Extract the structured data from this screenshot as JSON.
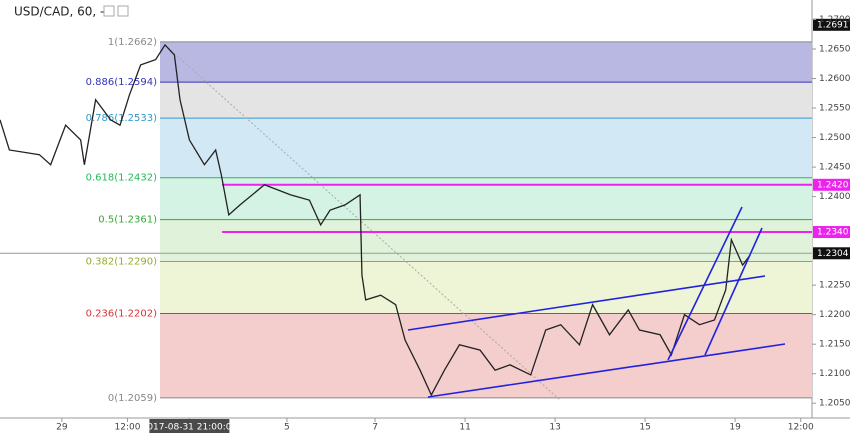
{
  "chart_data": {
    "type": "line",
    "title": "USD/CAD, 60, -",
    "ylim": [
      1.2025,
      1.2733
    ],
    "xlim": [
      0,
      433
    ],
    "yticks": [
      {
        "value": 1.205,
        "label": "1.2050"
      },
      {
        "value": 1.21,
        "label": "1.2100"
      },
      {
        "value": 1.215,
        "label": "1.2150"
      },
      {
        "value": 1.22,
        "label": "1.2200"
      },
      {
        "value": 1.225,
        "label": "1.2250"
      },
      {
        "value": 1.24,
        "label": "1.2400"
      },
      {
        "value": 1.245,
        "label": "1.2450"
      },
      {
        "value": 1.25,
        "label": "1.2500"
      },
      {
        "value": 1.255,
        "label": "1.2550"
      },
      {
        "value": 1.26,
        "label": "1.2600"
      },
      {
        "value": 1.265,
        "label": "1.2650"
      },
      {
        "value": 1.27,
        "label": "1.2700"
      }
    ],
    "xticks": [
      {
        "value": 33,
        "label": "29"
      },
      {
        "value": 68,
        "label": "12:00"
      },
      {
        "value": 101,
        "label": "2017-08-31 21:00:00"
      },
      {
        "value": 153,
        "label": "5"
      },
      {
        "value": 200,
        "label": "7"
      },
      {
        "value": 248,
        "label": "11"
      },
      {
        "value": 296,
        "label": "13"
      },
      {
        "value": 344,
        "label": "15"
      },
      {
        "value": 392,
        "label": "19"
      },
      {
        "value": 427,
        "label": "12:00"
      }
    ],
    "x": [
      0,
      5,
      21,
      27,
      35,
      43,
      45,
      51,
      59,
      64,
      69,
      75,
      83,
      88,
      93,
      96,
      101,
      109,
      115,
      118,
      122,
      128,
      141,
      155,
      165,
      171,
      176,
      184,
      192,
      193,
      195,
      203,
      211,
      216,
      224,
      230,
      237,
      245,
      256,
      264,
      272,
      283,
      291,
      299,
      309,
      316,
      325,
      335,
      341,
      352,
      358,
      365,
      373,
      381,
      387,
      390,
      396,
      400
    ],
    "series": [
      {
        "name": "USD/CAD",
        "color": "#222222",
        "values": [
          1.253,
          1.2479,
          1.2471,
          1.2454,
          1.2521,
          1.2496,
          1.2454,
          1.2564,
          1.253,
          1.2521,
          1.2572,
          1.2623,
          1.2632,
          1.2657,
          1.264,
          1.2564,
          1.2496,
          1.2454,
          1.2479,
          1.2437,
          1.2369,
          1.2386,
          1.242,
          1.2403,
          1.2394,
          1.2352,
          1.2377,
          1.2386,
          1.2403,
          1.2267,
          1.2225,
          1.2233,
          1.2217,
          1.2157,
          1.2106,
          1.2064,
          1.2106,
          1.2149,
          1.214,
          1.2106,
          1.2115,
          1.2098,
          1.2174,
          1.2183,
          1.2149,
          1.2217,
          1.2166,
          1.2208,
          1.2174,
          1.2166,
          1.2132,
          1.22,
          1.2183,
          1.2191,
          1.2242,
          1.2327,
          1.2284,
          1.2301
        ]
      }
    ],
    "fib_levels": [
      {
        "label": "1(1.2662)",
        "value": 1.2662,
        "color": "#888888",
        "fill": "#b8b8e2"
      },
      {
        "label": "0.886(1.2594)",
        "value": 1.2594,
        "color": "#3333bb",
        "fill": "#e4e4e4"
      },
      {
        "label": "0.786(1.2533)",
        "value": 1.2533,
        "color": "#3399cc",
        "fill": "#d2e9f5"
      },
      {
        "label": "0.618(1.2432)",
        "value": 1.2432,
        "color": "#22bb55",
        "fill": "#d4f3e4"
      },
      {
        "label": "0.5(1.2361)",
        "value": 1.2361,
        "color": "#33aa33",
        "fill": "#e0f3da"
      },
      {
        "label": "0.382(1.2290)",
        "value": 1.229,
        "color": "#99aa33",
        "fill": "#eef4d6"
      },
      {
        "label": "0.236(1.2202)",
        "value": 1.2202,
        "color": "#dd3333",
        "fill": "#f4cdcd"
      },
      {
        "label": "0(1.2059)",
        "value": 1.2059,
        "color": "#888888"
      }
    ],
    "price_tags": [
      {
        "label": "1.2691",
        "value": 1.2691,
        "color": "#111111"
      },
      {
        "label": "1.2420",
        "value": 1.242,
        "color": "#ee22ee"
      },
      {
        "label": "1.2340",
        "value": 1.234,
        "color": "#ee22ee"
      },
      {
        "label": "1.2304",
        "value": 1.2304,
        "color": "#111111"
      }
    ]
  }
}
